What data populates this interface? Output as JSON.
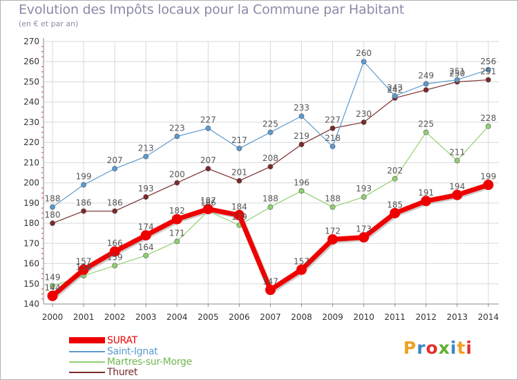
{
  "title": "Evolution des Impôts locaux pour la Commune par Habitant",
  "subtitle": "(en € et par an)",
  "brand": [
    "P",
    "r",
    "o",
    "x",
    "i",
    "t",
    "i"
  ],
  "brand_colors": [
    "#f0a020",
    "#3a86c8",
    "#e3302a",
    "#60b030",
    "#3a86c8",
    "#f0a020",
    "#e3302a"
  ],
  "colors": {
    "title": "#8a8aa8",
    "axis": "#888888",
    "grid": "#d8d8d8",
    "tick_label": "#333333",
    "data_label": "#555555"
  },
  "chart_data": {
    "type": "line",
    "title": "Evolution des Impôts locaux pour la Commune par Habitant",
    "subtitle": "(en € et par an)",
    "xlabel": "",
    "ylabel": "",
    "ylim": [
      140,
      270
    ],
    "yticks": [
      140,
      150,
      160,
      170,
      180,
      190,
      200,
      210,
      220,
      230,
      240,
      250,
      260,
      270
    ],
    "grid": true,
    "legend_position": "bottom-left",
    "categories": [
      "2000",
      "2001",
      "2002",
      "2003",
      "2004",
      "2005",
      "2006",
      "2007",
      "2008",
      "2009",
      "2010",
      "2011",
      "2012",
      "2013",
      "2014"
    ],
    "series": [
      {
        "name": "Thuret",
        "color": "#7a2a2a",
        "width": 1.2,
        "marker": 3.6,
        "values": [
          180,
          186,
          186,
          193,
          200,
          207,
          201,
          208,
          219,
          227,
          230,
          242,
          246,
          250,
          251
        ],
        "labels": [
          "180",
          "186",
          "186",
          "193",
          "200",
          "207",
          "201",
          "208",
          "219",
          "227",
          "230",
          "242",
          "",
          "250",
          "251"
        ]
      },
      {
        "name": "Martres-sur-Morge",
        "color": "#90d070",
        "width": 1.2,
        "marker": 3.6,
        "values": [
          149,
          154,
          159,
          164,
          171,
          186,
          179,
          188,
          196,
          188,
          193,
          202,
          225,
          211,
          228
        ],
        "labels": [
          "149",
          "154",
          "159",
          "164",
          "171",
          "186",
          "179",
          "188",
          "196",
          "188",
          "193",
          "202",
          "225",
          "211",
          "228"
        ]
      },
      {
        "name": "Saint-Ignat",
        "color": "#5a9ad0",
        "width": 1.2,
        "marker": 3.6,
        "values": [
          188,
          199,
          207,
          213,
          223,
          227,
          217,
          225,
          233,
          218,
          260,
          243,
          249,
          251,
          256
        ],
        "labels": [
          "188",
          "199",
          "207",
          "213",
          "223",
          "227",
          "217",
          "225",
          "233",
          "218",
          "260",
          "243",
          "249",
          "251",
          "256"
        ]
      },
      {
        "name": "SURAT",
        "color": "#ee0000",
        "width": 7,
        "marker": 7.5,
        "values": [
          144,
          157,
          166,
          174,
          182,
          187,
          184,
          147,
          157,
          172,
          173,
          185,
          191,
          194,
          199
        ],
        "labels": [
          "144",
          "157",
          "166",
          "174",
          "182",
          "187",
          "184",
          "147",
          "157",
          "172",
          "173",
          "185",
          "191",
          "194",
          "199"
        ]
      }
    ],
    "legend": [
      "SURAT",
      "Saint-Ignat",
      "Martres-sur-Morge",
      "Thuret"
    ]
  }
}
